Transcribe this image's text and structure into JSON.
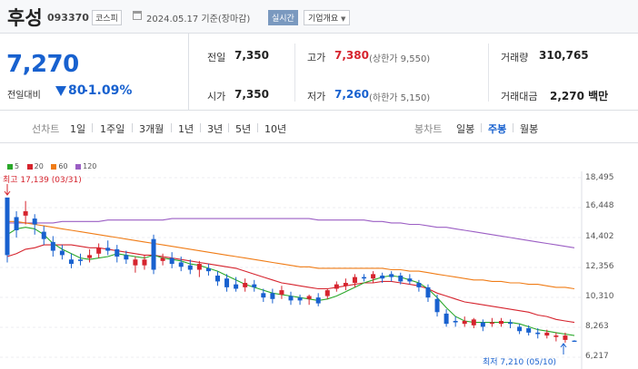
{
  "header": {
    "name": "후성",
    "code": "093370",
    "market": "코스피",
    "date": "2024.05.17 기준(장마감)",
    "realtime": "실시간",
    "info": "기업개요",
    "info_icon": "chevron-down-icon"
  },
  "summary": {
    "price": "7,270",
    "change_label": "전일대비",
    "change_amt": "80",
    "change_rate": "-1.09%",
    "prev_close_label": "전일",
    "prev_close": "7,350",
    "open_label": "시가",
    "open": "7,350",
    "high_label": "고가",
    "high": "7,380",
    "upper_limit": "(상한가 9,550)",
    "low_label": "저가",
    "low": "7,260",
    "lower_limit": "(하한가 5,150)",
    "volume_label": "거래량",
    "volume": "310,765",
    "amount_label": "거래대금",
    "amount": "2,270 백만"
  },
  "tabs": {
    "line_label": "선차트",
    "line": [
      "1일",
      "1주일",
      "3개월",
      "1년",
      "3년",
      "5년",
      "10년"
    ],
    "candle_label": "봉차트",
    "candle": [
      "일봉",
      "주봉",
      "월봉"
    ],
    "active_candle": 1
  },
  "colors": {
    "up": "#d6242e",
    "down": "#1861cf",
    "ma5": "#2aa82a",
    "ma20": "#d6242e",
    "ma60": "#f07c16",
    "ma120": "#9b5ec4"
  },
  "chart_data": {
    "type": "candlestick",
    "legend": [
      "5",
      "20",
      "60",
      "120"
    ],
    "y_ticks": [
      18495,
      16448,
      14402,
      12356,
      10310,
      8263,
      6217
    ],
    "y_tick_labels": [
      "18,495",
      "16,448",
      "14,402",
      "12,356",
      "10,310",
      "8,263",
      "6,217"
    ],
    "ylim": [
      6217,
      18495
    ],
    "annotations": {
      "high": "최고 17,139 (03/31)",
      "low": "최저 7,210 (05/10)"
    },
    "candles": [
      [
        17139,
        13200,
        16300,
        12700
      ],
      [
        15800,
        14900,
        16200,
        14400
      ],
      [
        15900,
        16200,
        16900,
        15300
      ],
      [
        15700,
        15300,
        16000,
        14600
      ],
      [
        14800,
        14300,
        15200,
        13900
      ],
      [
        14100,
        13500,
        14500,
        13100
      ],
      [
        13500,
        13200,
        13900,
        12900
      ],
      [
        12900,
        12600,
        13300,
        12300
      ],
      [
        12900,
        12800,
        13300,
        12500
      ],
      [
        13000,
        13200,
        13600,
        12700
      ],
      [
        13300,
        13700,
        14000,
        13000
      ],
      [
        13700,
        13500,
        14200,
        13200
      ],
      [
        13600,
        13100,
        13900,
        12700
      ],
      [
        13200,
        12900,
        13500,
        12600
      ],
      [
        12500,
        12900,
        13100,
        12000
      ],
      [
        12500,
        12900,
        13200,
        12200
      ],
      [
        14300,
        12200,
        14600,
        11900
      ],
      [
        12800,
        13000,
        13300,
        12500
      ],
      [
        13000,
        12600,
        13400,
        12300
      ],
      [
        12700,
        12400,
        13100,
        12100
      ],
      [
        12500,
        12200,
        12900,
        11900
      ],
      [
        12200,
        12600,
        12800,
        11700
      ],
      [
        12300,
        12100,
        12600,
        11800
      ],
      [
        11800,
        11400,
        12100,
        11100
      ],
      [
        11600,
        11000,
        11900,
        10700
      ],
      [
        11200,
        10900,
        11700,
        10700
      ],
      [
        11000,
        11300,
        11600,
        10700
      ],
      [
        11200,
        11000,
        11500,
        10700
      ],
      [
        10600,
        10300,
        10900,
        10000
      ],
      [
        10600,
        10200,
        10900,
        9900
      ],
      [
        10500,
        10800,
        11100,
        10200
      ],
      [
        10400,
        10100,
        10700,
        9800
      ],
      [
        10300,
        10100,
        10500,
        9800
      ],
      [
        10200,
        10400,
        10500,
        9800
      ],
      [
        10300,
        9900,
        10600,
        9700
      ],
      [
        10400,
        10800,
        10900,
        10200
      ],
      [
        10900,
        11200,
        11400,
        10700
      ],
      [
        11100,
        11300,
        11600,
        10800
      ],
      [
        11300,
        11700,
        11900,
        11000
      ],
      [
        11700,
        11600,
        11900,
        11400
      ],
      [
        11600,
        11900,
        12100,
        11300
      ],
      [
        11800,
        11600,
        12000,
        11300
      ],
      [
        11900,
        11700,
        12100,
        11400
      ],
      [
        11800,
        11400,
        12000,
        11200
      ],
      [
        11600,
        11400,
        11900,
        11200
      ],
      [
        11300,
        11000,
        11500,
        10700
      ],
      [
        11000,
        10300,
        11200,
        10000
      ],
      [
        10200,
        9300,
        10500,
        9000
      ],
      [
        9200,
        8500,
        9500,
        8300
      ],
      [
        8700,
        8600,
        9000,
        8300
      ],
      [
        8500,
        8700,
        9000,
        8300
      ],
      [
        8400,
        8800,
        8900,
        8200
      ],
      [
        8600,
        8300,
        8800,
        8000
      ],
      [
        8500,
        8600,
        8900,
        8300
      ],
      [
        8500,
        8700,
        8900,
        8300
      ],
      [
        8600,
        8500,
        8800,
        8200
      ],
      [
        8300,
        8000,
        8500,
        7800
      ],
      [
        8200,
        7900,
        8400,
        7700
      ],
      [
        7900,
        7800,
        8200,
        7500
      ],
      [
        7700,
        7900,
        8100,
        7500
      ],
      [
        7600,
        7700,
        7900,
        7300
      ],
      [
        7400,
        7700,
        7900,
        7210
      ],
      [
        7350,
        7270,
        7380,
        7260
      ]
    ],
    "ma5": [
      14600,
      15000,
      15100,
      15000,
      14600,
      14000,
      13600,
      13300,
      13000,
      12900,
      13000,
      13100,
      13300,
      13200,
      13100,
      13000,
      13200,
      13000,
      12900,
      12800,
      12600,
      12500,
      12300,
      12100,
      11800,
      11500,
      11200,
      11000,
      10800,
      10600,
      10500,
      10400,
      10300,
      10200,
      10100,
      10200,
      10400,
      10700,
      11000,
      11300,
      11500,
      11700,
      11800,
      11700,
      11500,
      11300,
      10900,
      10300,
      9600,
      9000,
      8700,
      8600,
      8600,
      8600,
      8600,
      8600,
      8500,
      8300,
      8100,
      8000,
      7900,
      7800,
      7700
    ],
    "ma20": [
      13100,
      13300,
      13600,
      13700,
      13900,
      13900,
      13900,
      13900,
      13800,
      13700,
      13700,
      13600,
      13500,
      13400,
      13300,
      13200,
      13200,
      13100,
      13000,
      12900,
      12800,
      12700,
      12600,
      12500,
      12400,
      12300,
      12100,
      11900,
      11700,
      11500,
      11300,
      11200,
      11100,
      11000,
      10900,
      10900,
      11000,
      11100,
      11200,
      11300,
      11300,
      11400,
      11400,
      11300,
      11200,
      11100,
      10900,
      10600,
      10400,
      10200,
      10000,
      9900,
      9800,
      9700,
      9600,
      9500,
      9400,
      9300,
      9100,
      9000,
      8800,
      8700,
      8600
    ],
    "ma60": [
      15500,
      15500,
      15400,
      15300,
      15200,
      15100,
      15000,
      14900,
      14800,
      14700,
      14600,
      14500,
      14400,
      14300,
      14200,
      14100,
      14000,
      13900,
      13800,
      13700,
      13600,
      13500,
      13400,
      13300,
      13200,
      13100,
      13000,
      12900,
      12800,
      12700,
      12600,
      12500,
      12400,
      12400,
      12300,
      12300,
      12300,
      12300,
      12300,
      12300,
      12300,
      12300,
      12200,
      12200,
      12100,
      12100,
      12000,
      11900,
      11800,
      11700,
      11600,
      11500,
      11500,
      11400,
      11400,
      11300,
      11300,
      11200,
      11200,
      11100,
      11000,
      11000,
      10900
    ],
    "ma120": [
      15400,
      15400,
      15400,
      15400,
      15400,
      15400,
      15500,
      15500,
      15500,
      15500,
      15500,
      15600,
      15600,
      15600,
      15600,
      15600,
      15600,
      15600,
      15700,
      15700,
      15700,
      15700,
      15700,
      15700,
      15700,
      15700,
      15700,
      15700,
      15700,
      15700,
      15700,
      15700,
      15700,
      15700,
      15600,
      15600,
      15600,
      15600,
      15600,
      15600,
      15500,
      15500,
      15400,
      15400,
      15300,
      15300,
      15200,
      15100,
      15100,
      15000,
      14900,
      14800,
      14700,
      14600,
      14500,
      14400,
      14300,
      14200,
      14100,
      14000,
      13900,
      13800,
      13700
    ]
  }
}
